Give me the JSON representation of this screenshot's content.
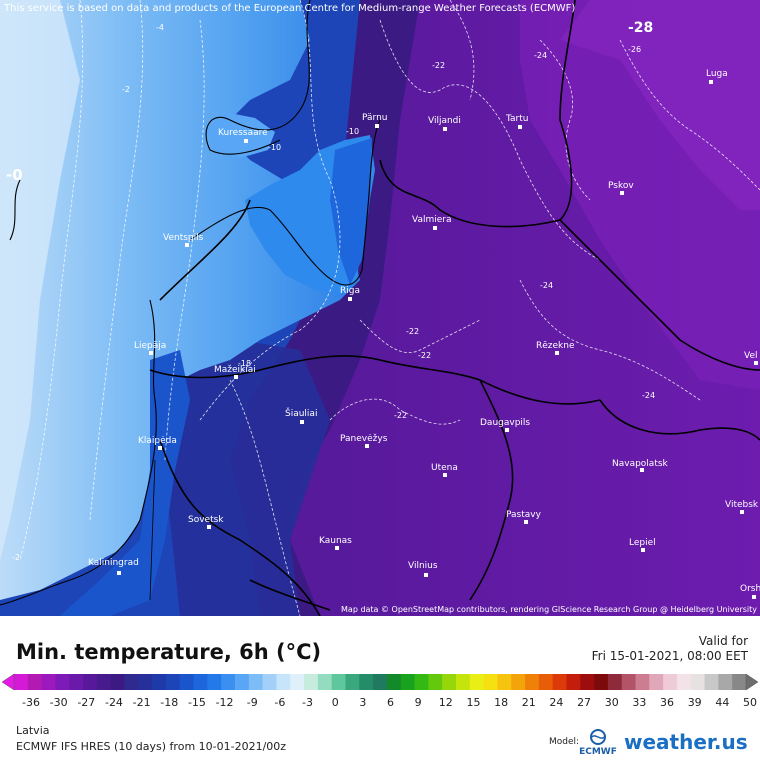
{
  "map": {
    "disclaimer": "This service is based on data and products of the European Centre for Medium-range Weather Forecasts (ECMWF)",
    "attribution": "Map data © OpenStreetMap contributors, rendering GIScience Research Group @ Heidelberg University",
    "cities": [
      {
        "name": "Luga"
      },
      {
        "name": "Pärnu"
      },
      {
        "name": "Viljandi"
      },
      {
        "name": "Tartu"
      },
      {
        "name": "Kuressaare"
      },
      {
        "name": "Pskov"
      },
      {
        "name": "Valmiera"
      },
      {
        "name": "Ventspils"
      },
      {
        "name": "Riga"
      },
      {
        "name": "Rēzekne"
      },
      {
        "name": "Liepāja"
      },
      {
        "name": "Mažeikiai"
      },
      {
        "name": "Šiauliai"
      },
      {
        "name": "Panevėžys"
      },
      {
        "name": "Daugavpils"
      },
      {
        "name": "Klaipėda"
      },
      {
        "name": "Utena"
      },
      {
        "name": "Navapolatsk"
      },
      {
        "name": "Vitebsk"
      },
      {
        "name": "Sovetsk"
      },
      {
        "name": "Pastavy"
      },
      {
        "name": "Kaunas"
      },
      {
        "name": "Lepiel"
      },
      {
        "name": "Kaliningrad"
      },
      {
        "name": "Vilnius"
      },
      {
        "name": "Orsha"
      },
      {
        "name": "Vel"
      }
    ],
    "contour_labels": [
      "-4",
      "-2",
      "-0",
      "-10",
      "-10",
      "-22",
      "-24",
      "-26",
      "-28",
      "-24",
      "-22",
      "-22",
      "-22",
      "-24",
      "-18",
      "-2"
    ]
  },
  "legend": {
    "title": "Min. temperature, 6h (°C)",
    "valid_label": "Valid for",
    "valid_time": "Fri 15-01-2021, 08:00 EET",
    "ticks": [
      "-36",
      "-30",
      "-27",
      "-24",
      "-21",
      "-18",
      "-15",
      "-12",
      "-9",
      "-6",
      "-3",
      "0",
      "3",
      "6",
      "9",
      "12",
      "15",
      "18",
      "21",
      "24",
      "27",
      "30",
      "33",
      "36",
      "39",
      "44",
      "50"
    ],
    "colors": [
      "#d41ad4",
      "#b31ab3",
      "#9b19bd",
      "#7d1ab8",
      "#6a19a8",
      "#57189a",
      "#471a8e",
      "#3c1a84",
      "#2f2a90",
      "#262f9a",
      "#1e3aa8",
      "#1d45b8",
      "#1b55cc",
      "#1d66dc",
      "#2479e8",
      "#3a8ff0",
      "#58a6f5",
      "#7cbcf7",
      "#a2d0f8",
      "#c6e4fa",
      "#dff0fb",
      "#c6ecdd",
      "#93dcc0",
      "#5fc79c",
      "#3aa87d",
      "#258c69",
      "#1f7a5f",
      "#128a2a",
      "#18a21e",
      "#33b814",
      "#64c90c",
      "#95d70a",
      "#c4e40c",
      "#e9ee14",
      "#f5e012",
      "#f6c40e",
      "#f4a40b",
      "#ef8109",
      "#e85e08",
      "#dc3a08",
      "#c41d0b",
      "#9e0d0d",
      "#7d0a0a",
      "#8e2a3a",
      "#b25368",
      "#cc7d92",
      "#e0a7b8",
      "#eecbd6",
      "#f3e2e8",
      "#e6e2e2",
      "#c8c8c8",
      "#a8a8a8",
      "#888888"
    ],
    "region": "Latvia",
    "model_run": "ECMWF IFS HRES (10 days) from 10-01-2021/00z",
    "model_label": "Model:",
    "model_logo_text": "ECMWF",
    "brand": "weather.us"
  }
}
